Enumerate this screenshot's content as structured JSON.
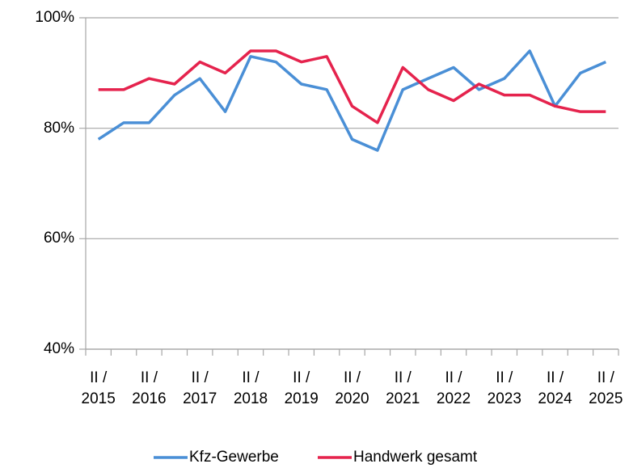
{
  "chart_data": {
    "type": "line",
    "categories": [
      "II /\n2015",
      null,
      "II /\n2016",
      null,
      "II /\n2017",
      null,
      "II /\n2018",
      null,
      "II /\n2019",
      null,
      "II /\n2020",
      null,
      "II /\n2021",
      null,
      "II /\n2022",
      null,
      "II /\n2023",
      null,
      "II /\n2024",
      null,
      "II /\n2025"
    ],
    "series": [
      {
        "name": "Kfz-Gewerbe",
        "color": "#4a8fd6",
        "values": [
          78,
          81,
          81,
          86,
          89,
          83,
          93,
          92,
          88,
          87,
          78,
          76,
          87,
          89,
          91,
          87,
          89,
          94,
          84,
          90,
          92
        ]
      },
      {
        "name": "Handwerk gesamt",
        "color": "#e5234d",
        "values": [
          87,
          87,
          89,
          88,
          92,
          90,
          94,
          94,
          92,
          93,
          84,
          81,
          91,
          87,
          85,
          88,
          86,
          86,
          84,
          83,
          83
        ]
      }
    ],
    "ylim": [
      40,
      100
    ],
    "yticks": [
      {
        "value": 40,
        "label": "40%"
      },
      {
        "value": 60,
        "label": "60%"
      },
      {
        "value": 80,
        "label": "80%"
      },
      {
        "value": 100,
        "label": "100%"
      }
    ],
    "grid": true,
    "legend": "bottom"
  }
}
